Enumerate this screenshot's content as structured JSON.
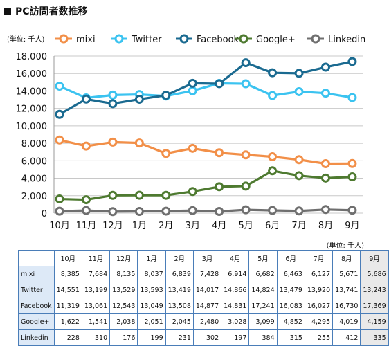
{
  "title": "PC訪問者数推移",
  "unit_label": "(単位: 千人)",
  "table_unit_label": "(単位: 千人)",
  "chart_data": {
    "type": "line",
    "title": "PC訪問者数推移",
    "ylabel": "(単位: 千人)",
    "xlabel": "",
    "categories": [
      "10月",
      "11月",
      "12月",
      "1月",
      "2月",
      "3月",
      "4月",
      "5月",
      "6月",
      "7月",
      "8月",
      "9月"
    ],
    "ylim": [
      0,
      18000
    ],
    "yticks": [
      "0",
      "2,000",
      "4,000",
      "6,000",
      "8,000",
      "10,000",
      "12,000",
      "14,000",
      "16,000",
      "18,000"
    ],
    "grid": "horizontal",
    "legend_position": "top",
    "series": [
      {
        "name": "mixi",
        "color": "#f28f48",
        "values": [
          8385,
          7684,
          8135,
          8037,
          6839,
          7428,
          6914,
          6682,
          6463,
          6127,
          5671,
          5686
        ]
      },
      {
        "name": "Twitter",
        "color": "#3bc3f0",
        "values": [
          14551,
          13199,
          13529,
          13593,
          13419,
          14017,
          14866,
          14824,
          13479,
          13920,
          13741,
          13243
        ]
      },
      {
        "name": "Facebook",
        "color": "#1a6a90",
        "values": [
          11319,
          13061,
          12543,
          13049,
          13508,
          14877,
          14831,
          17241,
          16083,
          16027,
          16730,
          17369
        ]
      },
      {
        "name": "Google+",
        "color": "#4e7a30",
        "values": [
          1622,
          1541,
          2038,
          2051,
          2045,
          2480,
          3028,
          3099,
          4852,
          4295,
          4019,
          4159
        ]
      },
      {
        "name": "Linkedin",
        "color": "#6f6f6f",
        "values": [
          228,
          310,
          176,
          199,
          231,
          302,
          197,
          384,
          315,
          255,
          412,
          335
        ]
      }
    ]
  },
  "table": {
    "columns": [
      "",
      "10月",
      "11月",
      "12月",
      "1月",
      "2月",
      "3月",
      "4月",
      "5月",
      "6月",
      "7月",
      "8月",
      "9月"
    ],
    "rows": [
      {
        "label": "mixi",
        "values": [
          "8,385",
          "7,684",
          "8,135",
          "8,037",
          "6,839",
          "7,428",
          "6,914",
          "6,682",
          "6,463",
          "6,127",
          "5,671",
          "5,686"
        ]
      },
      {
        "label": "Twitter",
        "values": [
          "14,551",
          "13,199",
          "13,529",
          "13,593",
          "13,419",
          "14,017",
          "14,866",
          "14,824",
          "13,479",
          "13,920",
          "13,741",
          "13,243"
        ]
      },
      {
        "label": "Facebook",
        "values": [
          "11,319",
          "13,061",
          "12,543",
          "13,049",
          "13,508",
          "14,877",
          "14,831",
          "17,241",
          "16,083",
          "16,027",
          "16,730",
          "17,369"
        ]
      },
      {
        "label": "Google+",
        "values": [
          "1,622",
          "1,541",
          "2,038",
          "2,051",
          "2,045",
          "2,480",
          "3,028",
          "3,099",
          "4,852",
          "4,295",
          "4,019",
          "4,159"
        ]
      },
      {
        "label": "Linkedin",
        "values": [
          "228",
          "310",
          "176",
          "199",
          "231",
          "302",
          "197",
          "384",
          "315",
          "255",
          "412",
          "335"
        ]
      }
    ]
  }
}
